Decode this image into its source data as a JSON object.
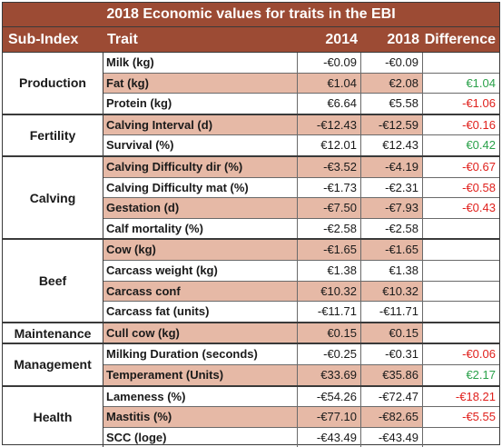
{
  "title": "2018 Economic values for traits in the EBI",
  "header": {
    "subindex": "Sub-Index",
    "trait": "Trait",
    "y2014": "2014",
    "y2018": "2018",
    "difference": "Difference"
  },
  "colors": {
    "header_bg": "#9c4b34",
    "shade": "#e6b9a6",
    "positive": "#2aa14a",
    "negative": "#e0201c"
  },
  "groups": [
    {
      "name": "Production",
      "rows": [
        {
          "trait": "Milk (kg)",
          "v2014": "-€0.09",
          "v2018": "-€0.09",
          "diff": "",
          "sign": "",
          "shaded": false
        },
        {
          "trait": "Fat (kg)",
          "v2014": "€1.04",
          "v2018": "€2.08",
          "diff": "€1.04",
          "sign": "pos",
          "shaded": true
        },
        {
          "trait": "Protein (kg)",
          "v2014": "€6.64",
          "v2018": "€5.58",
          "diff": "-€1.06",
          "sign": "neg",
          "shaded": false
        }
      ]
    },
    {
      "name": "Fertility",
      "rows": [
        {
          "trait": "Calving Interval (d)",
          "v2014": "-€12.43",
          "v2018": "-€12.59",
          "diff": "-€0.16",
          "sign": "neg",
          "shaded": true
        },
        {
          "trait": "Survival (%)",
          "v2014": "€12.01",
          "v2018": "€12.43",
          "diff": "€0.42",
          "sign": "pos",
          "shaded": false
        }
      ]
    },
    {
      "name": "Calving",
      "rows": [
        {
          "trait": "Calving Difficulty dir (%)",
          "v2014": "-€3.52",
          "v2018": "-€4.19",
          "diff": "-€0.67",
          "sign": "neg",
          "shaded": true
        },
        {
          "trait": "Calving Difficulty mat (%)",
          "v2014": "-€1.73",
          "v2018": "-€2.31",
          "diff": "-€0.58",
          "sign": "neg",
          "shaded": false
        },
        {
          "trait": "Gestation (d)",
          "v2014": "-€7.50",
          "v2018": "-€7.93",
          "diff": "-€0.43",
          "sign": "neg",
          "shaded": true
        },
        {
          "trait": "Calf mortality (%)",
          "v2014": "-€2.58",
          "v2018": "-€2.58",
          "diff": "",
          "sign": "",
          "shaded": false
        }
      ]
    },
    {
      "name": "Beef",
      "rows": [
        {
          "trait": "Cow (kg)",
          "v2014": "-€1.65",
          "v2018": "-€1.65",
          "diff": "",
          "sign": "",
          "shaded": true
        },
        {
          "trait": "Carcass weight (kg)",
          "v2014": "€1.38",
          "v2018": "€1.38",
          "diff": "",
          "sign": "",
          "shaded": false
        },
        {
          "trait": "Carcass conf",
          "v2014": "€10.32",
          "v2018": "€10.32",
          "diff": "",
          "sign": "",
          "shaded": true
        },
        {
          "trait": "Carcass fat (units)",
          "v2014": "-€11.71",
          "v2018": "-€11.71",
          "diff": "",
          "sign": "",
          "shaded": false
        }
      ]
    },
    {
      "name": "Maintenance",
      "rows": [
        {
          "trait": "Cull cow (kg)",
          "v2014": "€0.15",
          "v2018": "€0.15",
          "diff": "",
          "sign": "",
          "shaded": true
        }
      ]
    },
    {
      "name": "Management",
      "rows": [
        {
          "trait": "Milking Duration (seconds)",
          "v2014": "-€0.25",
          "v2018": "-€0.31",
          "diff": "-€0.06",
          "sign": "neg",
          "shaded": false
        },
        {
          "trait": "Temperament (Units)",
          "v2014": "€33.69",
          "v2018": "€35.86",
          "diff": "€2.17",
          "sign": "pos",
          "shaded": true
        }
      ]
    },
    {
      "name": "Health",
      "rows": [
        {
          "trait": "Lameness (%)",
          "v2014": "-€54.26",
          "v2018": "-€72.47",
          "diff": "-€18.21",
          "sign": "neg",
          "shaded": false
        },
        {
          "trait": "Mastitis (%)",
          "v2014": "-€77.10",
          "v2018": "-€82.65",
          "diff": "-€5.55",
          "sign": "neg",
          "shaded": true
        },
        {
          "trait": "SCC (loge)",
          "v2014": "-€43.49",
          "v2018": "-€43.49",
          "diff": "",
          "sign": "",
          "shaded": false
        }
      ]
    }
  ]
}
